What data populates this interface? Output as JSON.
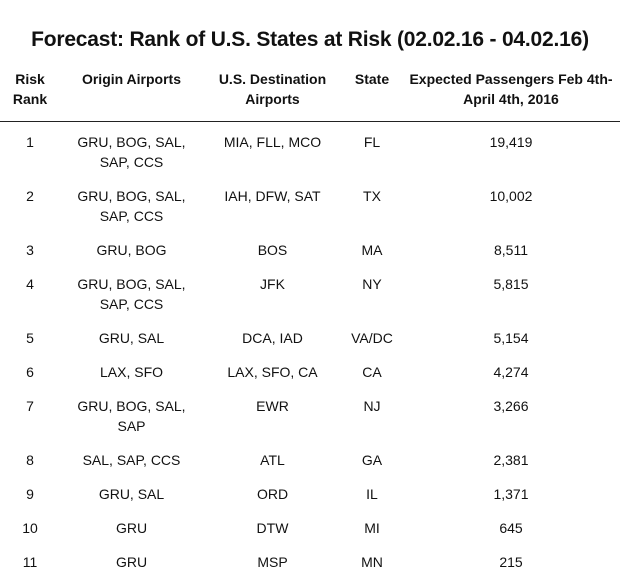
{
  "title": "Forecast: Rank of U.S. States at Risk (02.02.16 - 04.02.16)",
  "columns": {
    "rank": "Risk Rank",
    "origin": "Origin Airports",
    "dest": "U.S. Destination Airports",
    "state": "State",
    "passengers": "Expected Passengers Feb 4th-April 4th, 2016"
  },
  "rows": [
    {
      "rank": "1",
      "origin": "GRU, BOG, SAL, SAP, CCS",
      "dest": "MIA, FLL, MCO",
      "state": "FL",
      "passengers": "19,419"
    },
    {
      "rank": "2",
      "origin": "GRU, BOG, SAL, SAP, CCS",
      "dest": "IAH, DFW, SAT",
      "state": "TX",
      "passengers": "10,002"
    },
    {
      "rank": "3",
      "origin": "GRU, BOG",
      "dest": "BOS",
      "state": "MA",
      "passengers": "8,511"
    },
    {
      "rank": "4",
      "origin": "GRU, BOG, SAL, SAP, CCS",
      "dest": "JFK",
      "state": "NY",
      "passengers": "5,815"
    },
    {
      "rank": "5",
      "origin": "GRU, SAL",
      "dest": "DCA, IAD",
      "state": "VA/DC",
      "passengers": "5,154"
    },
    {
      "rank": "6",
      "origin": "LAX, SFO",
      "dest": "LAX, SFO, CA",
      "state": "CA",
      "passengers": "4,274"
    },
    {
      "rank": "7",
      "origin": "GRU, BOG, SAL, SAP",
      "dest": "EWR",
      "state": "NJ",
      "passengers": "3,266"
    },
    {
      "rank": "8",
      "origin": "SAL, SAP, CCS",
      "dest": "ATL",
      "state": "GA",
      "passengers": "2,381"
    },
    {
      "rank": "9",
      "origin": "GRU, SAL",
      "dest": "ORD",
      "state": "IL",
      "passengers": "1,371"
    },
    {
      "rank": "10",
      "origin": "GRU",
      "dest": "DTW",
      "state": "MI",
      "passengers": "645"
    },
    {
      "rank": "11",
      "origin": "GRU",
      "dest": "MSP",
      "state": "MN",
      "passengers": "215"
    }
  ]
}
